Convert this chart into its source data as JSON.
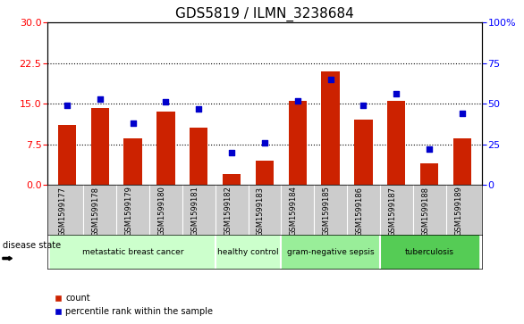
{
  "title": "GDS5819 / ILMN_3238684",
  "samples": [
    "GSM1599177",
    "GSM1599178",
    "GSM1599179",
    "GSM1599180",
    "GSM1599181",
    "GSM1599182",
    "GSM1599183",
    "GSM1599184",
    "GSM1599185",
    "GSM1599186",
    "GSM1599187",
    "GSM1599188",
    "GSM1599189"
  ],
  "counts": [
    11.0,
    14.2,
    8.5,
    13.5,
    10.5,
    2.0,
    4.5,
    15.5,
    21.0,
    12.0,
    15.5,
    4.0,
    8.5
  ],
  "percentiles": [
    49,
    53,
    38,
    51,
    47,
    20,
    26,
    52,
    65,
    49,
    56,
    22,
    44
  ],
  "ylim_left": [
    0,
    30
  ],
  "ylim_right": [
    0,
    100
  ],
  "yticks_left": [
    0,
    7.5,
    15,
    22.5,
    30
  ],
  "yticks_right": [
    0,
    25,
    50,
    75,
    100
  ],
  "bar_color": "#cc2200",
  "dot_color": "#0000cc",
  "background_xtick": "#cccccc",
  "disease_groups": [
    {
      "label": "metastatic breast cancer",
      "start": 0,
      "end": 4,
      "color": "#ccffcc"
    },
    {
      "label": "healthy control",
      "start": 5,
      "end": 6,
      "color": "#ccffcc"
    },
    {
      "label": "gram-negative sepsis",
      "start": 7,
      "end": 9,
      "color": "#99ee99"
    },
    {
      "label": "tuberculosis",
      "start": 10,
      "end": 12,
      "color": "#55cc55"
    }
  ],
  "disease_state_label": "disease state",
  "legend_count": "count",
  "legend_percentile": "percentile rank within the sample",
  "grid_yticks": [
    7.5,
    15,
    22.5
  ],
  "title_fontsize": 11,
  "tick_fontsize": 8,
  "sample_fontsize": 6
}
